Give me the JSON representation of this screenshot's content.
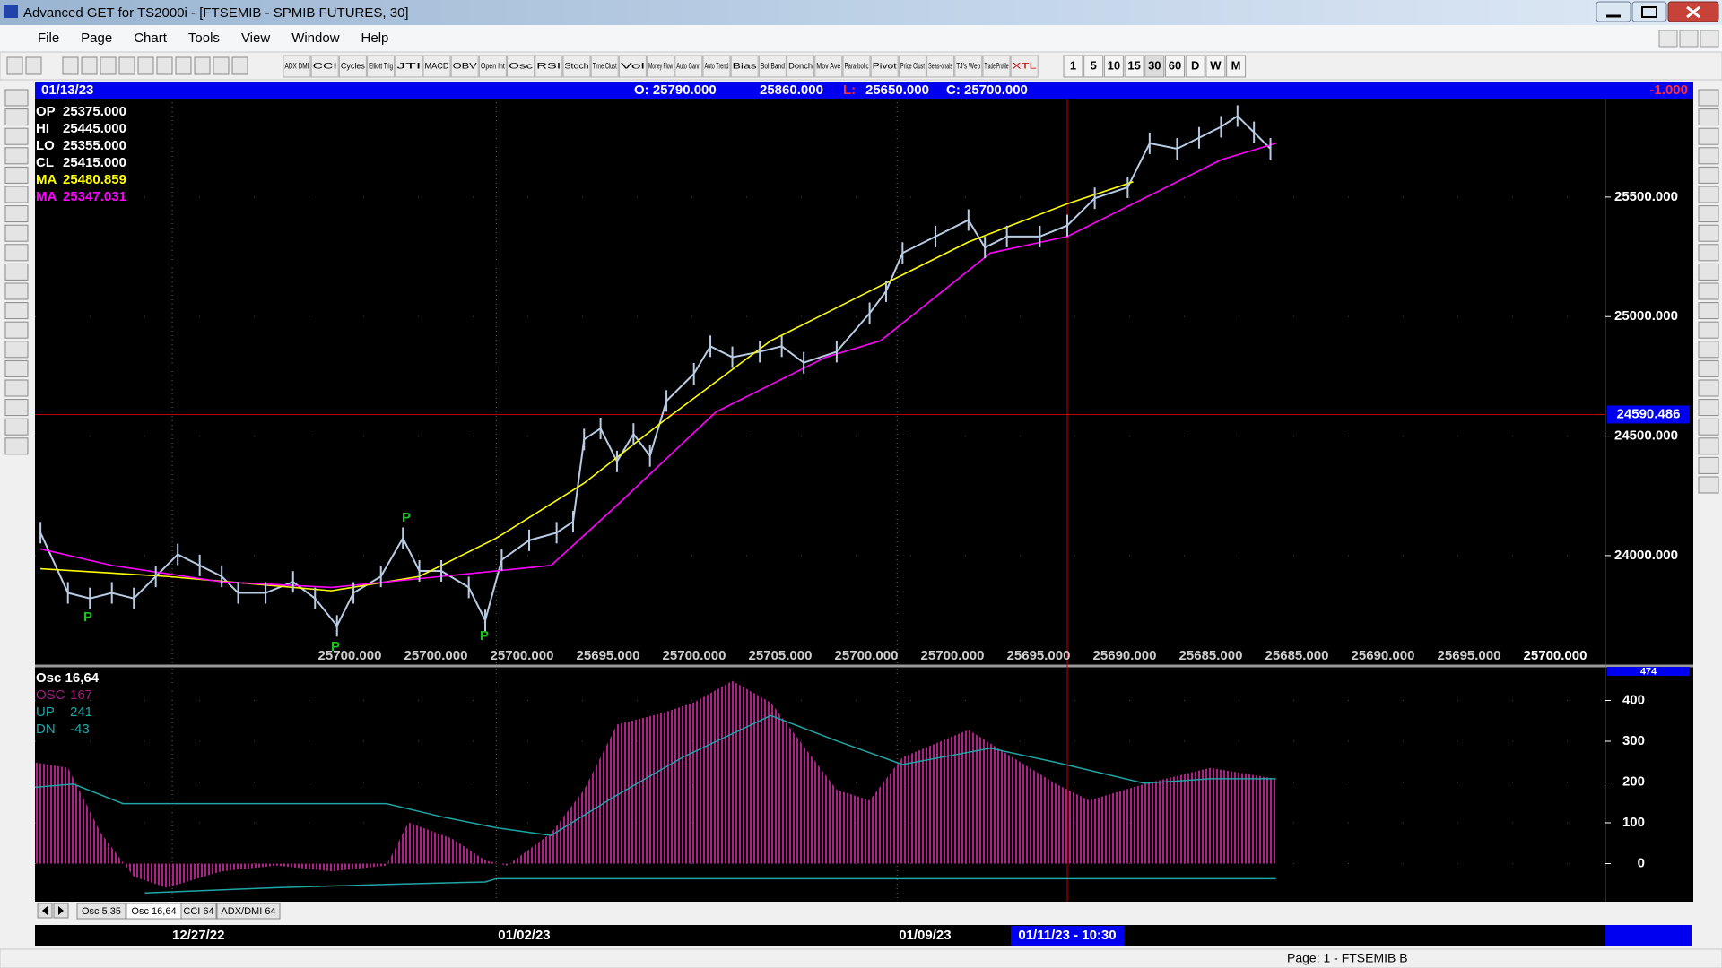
{
  "window": {
    "title": "Advanced GET for TS2000i - [FTSEMIB - SPMIB FUTURES, 30]"
  },
  "menu": [
    "File",
    "Page",
    "Chart",
    "Tools",
    "View",
    "Window",
    "Help"
  ],
  "toolbar": {
    "studies": [
      "ADX DMI",
      "CCI",
      "Cycles",
      "Elliott Trig",
      "JTI",
      "MACD",
      "OBV",
      "Open Int",
      "Osc",
      "RSI",
      "Stoch",
      "Time Clust",
      "Vol",
      "Money Flow",
      "Auto Gann",
      "Auto Trend",
      "Bias",
      "Bol Band",
      "Donch",
      "Mov Ave",
      "Para-bolic",
      "Pivot",
      "Price Clust",
      "Seas-onals",
      "TJ's Web",
      "Trade Profile",
      "XTL"
    ],
    "timeframes": [
      "1",
      "5",
      "10",
      "15",
      "30",
      "60",
      "D",
      "W",
      "M"
    ]
  },
  "header": {
    "date": "01/13/23",
    "open": "O: 25790.000",
    "high": "25860.000",
    "low_label": "L:",
    "low": "25650.000",
    "close": "C: 25700.000",
    "change": "-1.000"
  },
  "chart_data": [
    {
      "type": "line",
      "xlim": [
        0,
        286
      ],
      "ylim": [
        23546,
        25897
      ],
      "yticks": [
        {
          "value": 24000,
          "label": "24000.000"
        },
        {
          "value": 24500,
          "label": "24500.000"
        },
        {
          "value": 25000,
          "label": "25000.000"
        },
        {
          "value": 25500,
          "label": "25500.000"
        }
      ],
      "xticks": [
        {
          "value": 25,
          "label": "12/27/22"
        },
        {
          "value": 84,
          "label": "01/02/23"
        },
        {
          "value": 157,
          "label": "01/09/23"
        }
      ],
      "cursor": {
        "x": {
          "value": 188,
          "label": "01/11/23 - 10:30"
        },
        "y": {
          "value": 24590.486,
          "label": "24590.486"
        }
      },
      "grid": true,
      "legend": [
        {
          "label": "OP",
          "value": "25375.000",
          "color": "#ffffff"
        },
        {
          "label": "HI",
          "value": "25445.000",
          "color": "#ffffff"
        },
        {
          "label": "LO",
          "value": "25355.000",
          "color": "#ffffff"
        },
        {
          "label": "CL",
          "value": "25415.000",
          "color": "#ffffff"
        },
        {
          "label": "MA",
          "value": "25480.859",
          "color": "#ffff00"
        },
        {
          "label": "MA",
          "value": "25347.031",
          "color": "#ff00ff"
        }
      ],
      "pivots": [
        "P",
        "P",
        "P",
        "P"
      ],
      "bottom_labels": [
        "25700.000",
        "25700.000",
        "25700.000",
        "25695.000",
        "25700.000",
        "25705.000",
        "25700.000",
        "25700.000",
        "25695.000",
        "25690.000",
        "25685.000",
        "25685.000",
        "25690.000",
        "25695.000",
        "25700.000"
      ],
      "series": [
        {
          "color": "#b8cce4",
          "x": [
            1,
            6,
            10,
            14,
            18,
            22,
            26,
            30,
            34,
            37,
            42,
            47,
            51,
            55,
            58,
            63,
            67,
            70,
            74,
            79,
            82,
            85,
            90,
            95,
            98,
            100,
            103,
            106,
            109,
            112,
            115,
            120,
            123,
            127,
            132,
            136,
            140,
            146,
            152,
            155,
            158,
            164,
            170,
            173,
            177,
            183,
            188,
            193,
            199,
            203,
            208,
            212,
            216,
            219,
            222,
            225
          ],
          "values": [
            24096,
            23844,
            23821,
            23844,
            23821,
            23913,
            24005,
            23959,
            23913,
            23844,
            23844,
            23890,
            23821,
            23706,
            23844,
            23913,
            24073,
            23936,
            23936,
            23867,
            23729,
            23982,
            24064,
            24096,
            24142,
            24486,
            24532,
            24394,
            24509,
            24417,
            24647,
            24761,
            24876,
            24830,
            24853,
            24876,
            24807,
            24853,
            25014,
            25106,
            25266,
            25335,
            25404,
            25289,
            25335,
            25335,
            25381,
            25495,
            25541,
            25725,
            25702,
            25748,
            25794,
            25839,
            25771,
            25702
          ]
        },
        {
          "color": "#ffff00",
          "x": [
            1,
            24,
            54,
            70,
            84,
            100,
            114,
            134,
            152,
            170,
            188,
            200
          ],
          "values": [
            23945,
            23913,
            23853,
            23913,
            24073,
            24303,
            24555,
            24899,
            25106,
            25312,
            25472,
            25564
          ]
        },
        {
          "color": "#ff00ff",
          "x": [
            1,
            14,
            34,
            54,
            74,
            94,
            106,
            124,
            144,
            154,
            174,
            188,
            204,
            216,
            226
          ],
          "values": [
            24028,
            23959,
            23890,
            23867,
            23913,
            23959,
            24211,
            24601,
            24830,
            24899,
            25266,
            25335,
            25518,
            25656,
            25725
          ]
        }
      ]
    },
    {
      "type": "osc",
      "title": "Osc 16,64",
      "xlim": [
        0,
        286
      ],
      "ylim": [
        -89,
        478
      ],
      "yticks": [
        0,
        100,
        200,
        300,
        400
      ],
      "top_tick": 474,
      "legend": [
        {
          "label": "OSC",
          "value": "167",
          "color": "#a0207a"
        },
        {
          "label": "UP",
          "value": "241",
          "color": "#1fa5a5"
        },
        {
          "label": "DN",
          "value": "-43",
          "color": "#1fa5a5"
        }
      ],
      "series": [
        {
          "color": "#b0208a",
          "x": [
            0,
            6,
            12,
            18,
            24,
            34,
            44,
            54,
            64,
            68,
            76,
            82,
            86,
            94,
            100,
            106,
            114,
            120,
            127,
            134,
            140,
            146,
            152,
            158,
            170,
            178,
            186,
            192,
            202,
            214,
            226
          ],
          "values": [
            248,
            235,
            75,
            -32,
            -59,
            -19,
            -5,
            -19,
            -5,
            101,
            61,
            8,
            -5,
            75,
            181,
            341,
            368,
            395,
            448,
            395,
            288,
            181,
            155,
            261,
            328,
            261,
            195,
            155,
            195,
            235,
            208
          ]
        },
        {
          "color": "#1fa5a5",
          "x": [
            0,
            7,
            16,
            64,
            74,
            84,
            94,
            106,
            118,
            134,
            146,
            158,
            174,
            186,
            202,
            214,
            226
          ],
          "values": [
            187,
            195,
            147,
            147,
            115,
            88,
            69,
            168,
            261,
            363,
            301,
            243,
            283,
            248,
            197,
            208,
            208
          ]
        },
        {
          "color": "#1fa5a5",
          "x": [
            20,
            44,
            64,
            82,
            84,
            226
          ],
          "values": [
            -72,
            -59,
            -51,
            -45,
            -37,
            -37
          ]
        }
      ]
    }
  ],
  "tabs": [
    "Osc 5,35",
    "Osc 16,64",
    "CCI 64",
    "ADX/DMI 64"
  ],
  "status": "Page: 1 - FTSEMIB B"
}
